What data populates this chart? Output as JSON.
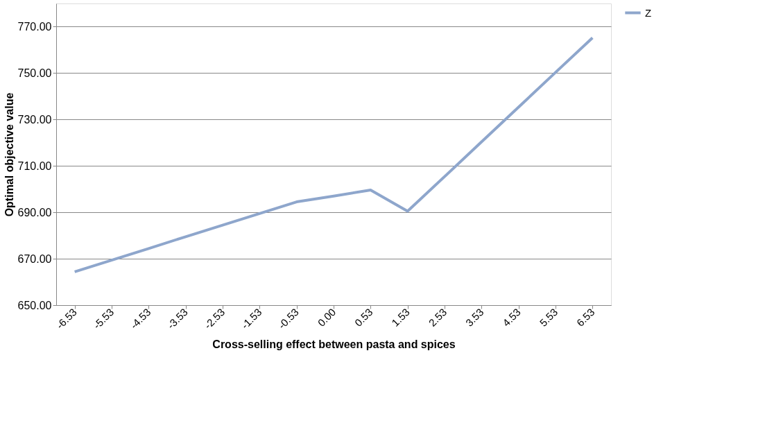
{
  "chart_data": {
    "type": "line",
    "xlabel": "Cross-selling effect between pasta and spices",
    "ylabel": "Optimal objective value",
    "categories": [
      "-6.53",
      "-5.53",
      "-4.53",
      "-3.53",
      "-2.53",
      "-1.53",
      "-0.53",
      "0.00",
      "0.53",
      "1.53",
      "2.53",
      "3.53",
      "4.53",
      "5.53",
      "6.53"
    ],
    "series": [
      {
        "name": "Z",
        "color": "#8ea6cc",
        "values": [
          664.4,
          669.4,
          674.4,
          679.5,
          684.5,
          689.5,
          694.5,
          697.0,
          699.6,
          690.5,
          705.4,
          720.4,
          735.3,
          750.3,
          765.2
        ]
      }
    ],
    "ylim": [
      650,
      780
    ],
    "yticks": [
      {
        "value": 650,
        "label": "650.00"
      },
      {
        "value": 670,
        "label": "670.00"
      },
      {
        "value": 690,
        "label": "690.00"
      },
      {
        "value": 710,
        "label": "710.00"
      },
      {
        "value": 730,
        "label": "730.00"
      },
      {
        "value": 750,
        "label": "750.00"
      },
      {
        "value": 770,
        "label": "770.00"
      }
    ],
    "grid": "y",
    "legend": "right",
    "marker": "none",
    "line_style": "solid"
  }
}
